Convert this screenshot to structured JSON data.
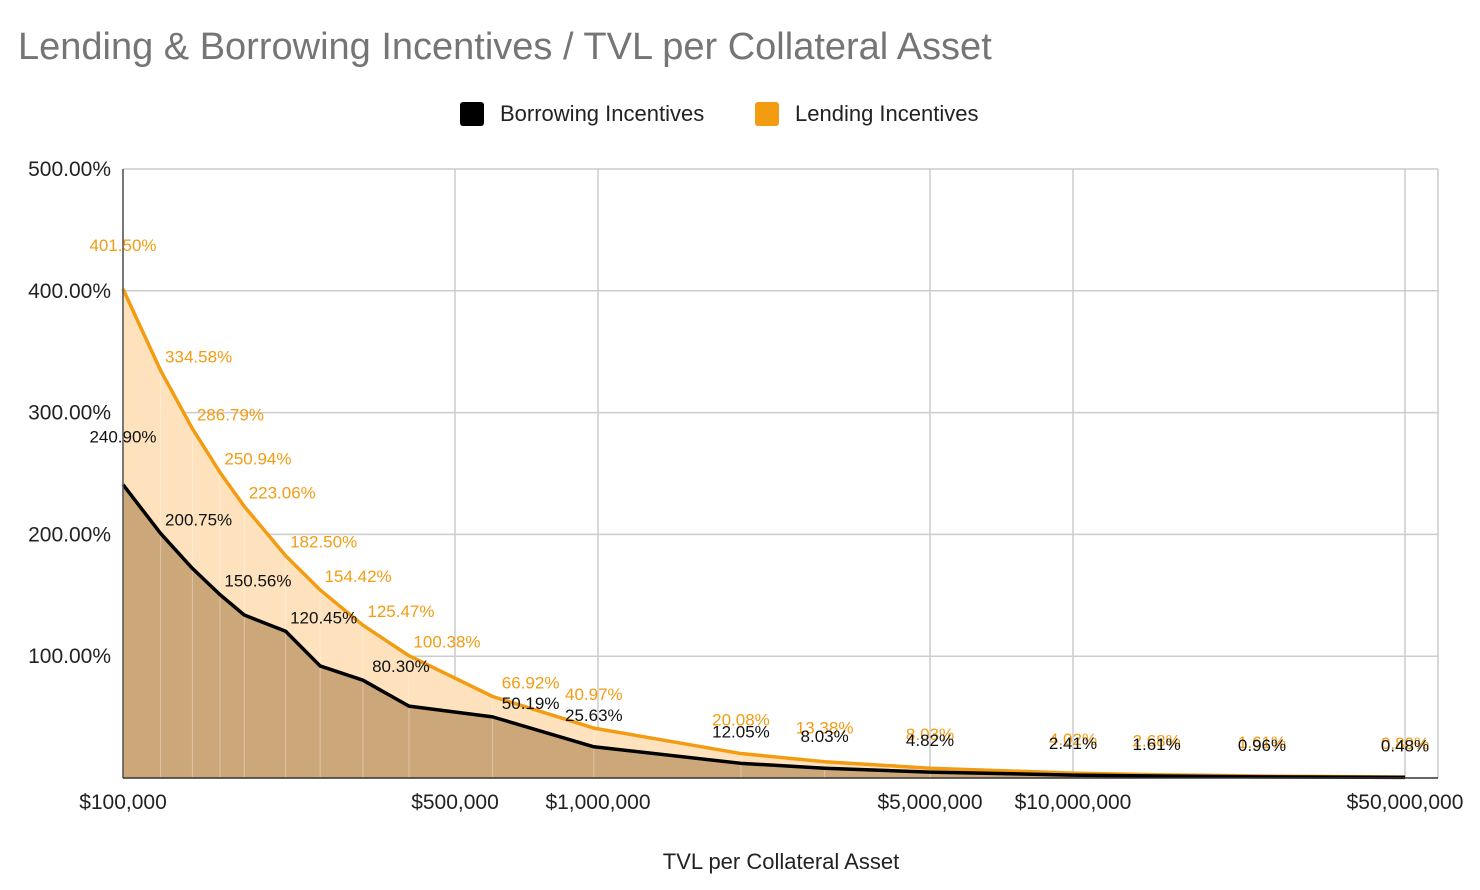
{
  "title": "Lending & Borrowing Incentives / TVL per Collateral Asset",
  "chart_data": {
    "type": "area",
    "xlabel": "TVL per Collateral Asset",
    "ylabel": "",
    "x_scale": "log",
    "xlim": [
      100000,
      50000000
    ],
    "ylim": [
      0,
      500
    ],
    "y_tick_values": [
      100,
      200,
      300,
      400,
      500
    ],
    "y_tick_labels": [
      "100.00%",
      "200.00%",
      "300.00%",
      "400.00%",
      "500.00%"
    ],
    "x_tick_values": [
      100000,
      500000,
      1000000,
      5000000,
      10000000,
      50000000
    ],
    "x_tick_labels": [
      "$100,000",
      "$500,000",
      "$1,000,000",
      "$5,000,000",
      "$10,000,000",
      "$50,000,000"
    ],
    "grid": true,
    "legend_position": "top",
    "x": [
      100000,
      120000,
      140000,
      160000,
      180000,
      220000,
      260000,
      320000,
      400000,
      600000,
      980000,
      2000000,
      3000000,
      5000000,
      10000000,
      15000000,
      25000000,
      50000000
    ],
    "series": [
      {
        "name": "Borrowing Incentives",
        "color": "#000000",
        "fill": "#cba77a",
        "values": [
          240.9,
          200.75,
          172.07,
          150.56,
          133.83,
          120.45,
          92.0,
          80.3,
          59.0,
          50.19,
          25.63,
          12.05,
          8.03,
          4.82,
          2.41,
          1.61,
          0.96,
          0.48
        ],
        "data_labels": [
          "240.90%",
          "200.75%",
          "",
          "150.56%",
          "",
          "120.45%",
          "",
          "80.30%",
          "",
          "50.19%",
          "25.63%",
          "12.05%",
          "8.03%",
          "4.82%",
          "2.41%",
          "1.61%",
          "0.96%",
          "0.48%"
        ]
      },
      {
        "name": "Lending Incentives",
        "color": "#f39c12",
        "fill": "#fde2bd",
        "values": [
          401.5,
          334.58,
          286.79,
          250.94,
          223.06,
          182.5,
          154.42,
          125.47,
          100.38,
          66.92,
          40.97,
          20.08,
          13.38,
          8.03,
          4.02,
          2.68,
          1.61,
          0.8
        ],
        "data_labels": [
          "401.50%",
          "334.58%",
          "286.79%",
          "250.94%",
          "223.06%",
          "182.50%",
          "154.42%",
          "125.47%",
          "100.38%",
          "66.92%",
          "40.97%",
          "20.08%",
          "13.38%",
          "8.03%",
          "4.02%",
          "2.68%",
          "1.61%",
          "0.80%"
        ]
      }
    ]
  }
}
